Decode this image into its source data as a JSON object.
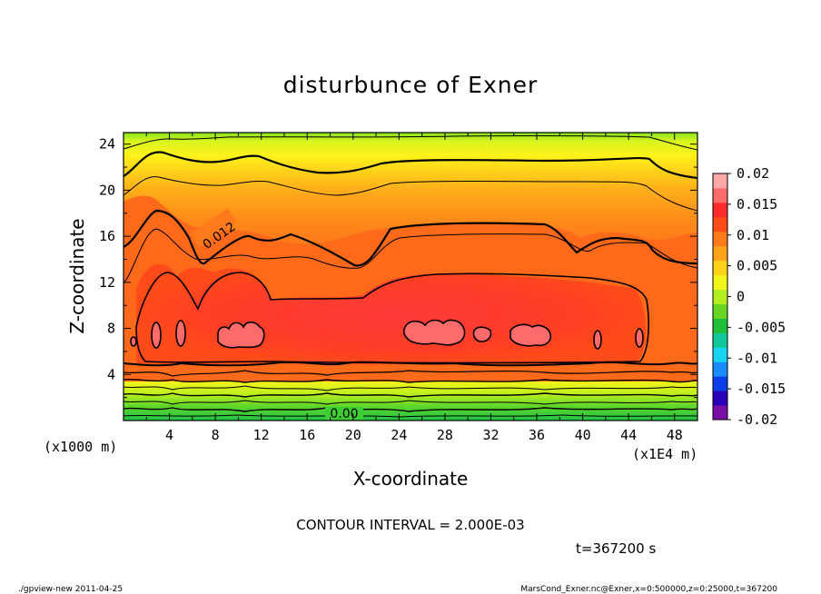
{
  "chart_data": {
    "type": "heatmap",
    "title": "disturbunce of Exner",
    "xlabel": "X-coordinate",
    "ylabel": "Z-coordinate",
    "x_unit": "(x1E4 m)",
    "z_unit": "(x1000 m)",
    "x_ticks": [
      "4",
      "8",
      "12",
      "16",
      "20",
      "24",
      "28",
      "32",
      "36",
      "40",
      "44",
      "48"
    ],
    "z_ticks": [
      "4",
      "8",
      "12",
      "16",
      "20",
      "24"
    ],
    "xlim": [
      0,
      50
    ],
    "zlim": [
      0,
      25
    ],
    "colorbar": {
      "labels": [
        "0.02",
        "0.015",
        "0.01",
        "0.005",
        "0",
        "-0.005",
        "-0.01",
        "-0.015",
        "-0.02"
      ],
      "range": [
        -0.02,
        0.02
      ],
      "colors": [
        "#7a0fa8",
        "#2b00b8",
        "#0a3ee6",
        "#1a8cff",
        "#19d4f0",
        "#12c79a",
        "#1fbf3a",
        "#66d622",
        "#b4ee1e",
        "#f2f51a",
        "#ffd21a",
        "#ffa21a",
        "#ff7a1a",
        "#ff4a1a",
        "#ff2a2a",
        "#ff6a6a",
        "#ffa8a8"
      ]
    },
    "contour_labels": [
      "0.012",
      "0.00"
    ],
    "contour_interval_text": "CONTOUR INTERVAL = 2.000E-03",
    "time_text": "t=367200 s"
  },
  "footer": {
    "left": "./gpview-new  2011-04-25",
    "right": "MarsCond_Exner.nc@Exner,x=0:500000,z=0:25000,t=367200"
  }
}
